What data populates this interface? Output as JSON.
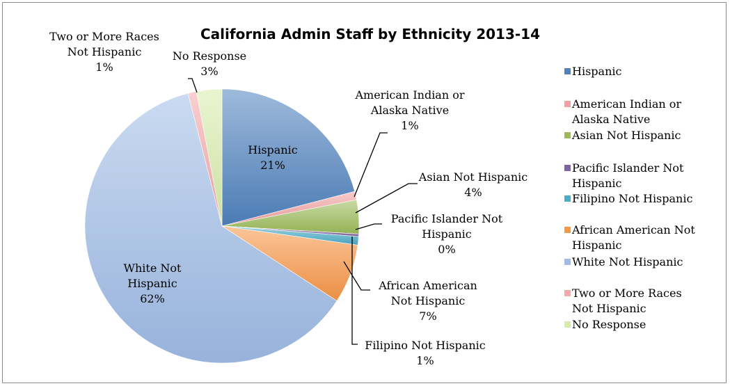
{
  "chart_data": {
    "type": "pie",
    "title": "California Admin Staff by Ethnicity 2013-14",
    "slices": [
      {
        "name": "Hispanic",
        "value": 21,
        "label": "21%",
        "color": "#4f81bd"
      },
      {
        "name": "American Indian or Alaska Native",
        "value": 1,
        "label": "1%",
        "color": "#f2a0a0"
      },
      {
        "name": "Asian Not Hispanic",
        "value": 4,
        "label": "4%",
        "color": "#9bbb59"
      },
      {
        "name": "Pacific Islander Not Hispanic",
        "value": 0.3,
        "label": "0%",
        "color": "#8064a2"
      },
      {
        "name": "Filipino Not Hispanic",
        "value": 1,
        "label": "1%",
        "color": "#4bacc6"
      },
      {
        "name": "African American Not Hispanic",
        "value": 7,
        "label": "7%",
        "color": "#f79646"
      },
      {
        "name": "White Not Hispanic",
        "value": 62,
        "label": "62%",
        "color": "#9fbbe6"
      },
      {
        "name": "Two or More Races Not Hispanic",
        "value": 1,
        "label": "1%",
        "color": "#f4a8a8"
      },
      {
        "name": "No Response",
        "value": 3,
        "label": "3%",
        "color": "#d7ecac"
      }
    ],
    "legend_position": "right"
  }
}
